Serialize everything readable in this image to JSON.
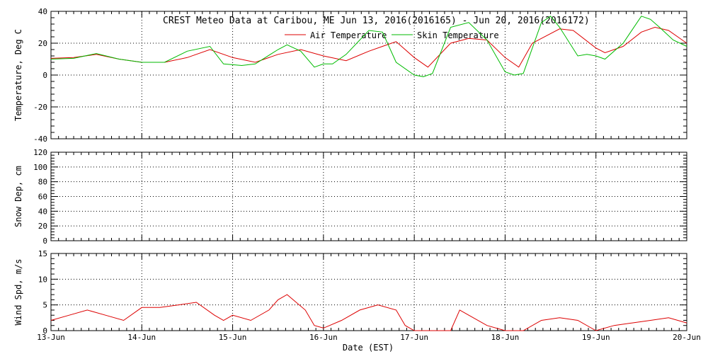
{
  "chart_data": [
    {
      "type": "line",
      "title": "CREST Meteo Data at Caribou, ME   Jun 13, 2016(2016165) - Jun 20, 2016(2016172)",
      "ylabel": "Temperature, Deg C",
      "ylim": [
        -40,
        40
      ],
      "yticks": [
        -40,
        -20,
        0,
        20,
        40
      ],
      "xlim": [
        0,
        7
      ],
      "grid": true,
      "legend_position": "top-center",
      "series": [
        {
          "name": "Air Temperature",
          "color": "#dd0000",
          "x": [
            0,
            0.25,
            0.5,
            0.75,
            1.0,
            1.25,
            1.5,
            1.75,
            2.0,
            2.25,
            2.5,
            2.75,
            3.0,
            3.25,
            3.5,
            3.65,
            3.8,
            4.0,
            4.15,
            4.4,
            4.6,
            4.8,
            5.0,
            5.15,
            5.3,
            5.6,
            5.75,
            6.0,
            6.1,
            6.3,
            6.5,
            6.65,
            6.8,
            7.0
          ],
          "values": [
            10.5,
            11,
            13,
            10,
            8,
            8,
            11,
            16,
            11,
            8,
            13,
            16,
            12,
            9,
            15,
            18,
            21,
            11,
            5,
            20,
            23,
            22,
            11,
            5,
            20,
            29,
            28,
            17,
            14,
            18,
            27,
            30,
            28,
            20
          ]
        },
        {
          "name": "Skin Temperature",
          "color": "#00bb00",
          "x": [
            0,
            0.25,
            0.5,
            0.75,
            1.0,
            1.25,
            1.5,
            1.75,
            1.9,
            2.1,
            2.25,
            2.5,
            2.6,
            2.75,
            2.9,
            3.0,
            3.1,
            3.25,
            3.5,
            3.65,
            3.8,
            4.0,
            4.1,
            4.2,
            4.4,
            4.6,
            4.8,
            5.0,
            5.1,
            5.2,
            5.4,
            5.5,
            5.6,
            5.8,
            5.9,
            6.0,
            6.1,
            6.3,
            6.5,
            6.6,
            6.7,
            6.85,
            7.0
          ],
          "values": [
            10,
            10.5,
            13.5,
            10,
            8,
            8,
            15,
            18,
            7,
            6,
            7,
            16,
            19,
            15,
            5,
            7,
            7,
            13,
            28,
            27,
            8,
            0,
            -1,
            1,
            30,
            33,
            22,
            2,
            0,
            1,
            33,
            37,
            30,
            12,
            13,
            12,
            10,
            20,
            37,
            35,
            30,
            22,
            18
          ]
        }
      ]
    },
    {
      "type": "line",
      "ylabel": "Snow Dep, cm",
      "ylim": [
        0,
        120
      ],
      "yticks": [
        0,
        20,
        40,
        60,
        80,
        100,
        120
      ],
      "xlim": [
        0,
        7
      ],
      "grid": true,
      "series": []
    },
    {
      "type": "line",
      "ylabel": "Wind Spd, m/s",
      "xlabel": "Date (EST)",
      "ylim": [
        0,
        15
      ],
      "yticks": [
        0,
        5,
        10,
        15
      ],
      "xlim": [
        0,
        7
      ],
      "xtick_labels": [
        "13-Jun",
        "14-Jun",
        "15-Jun",
        "16-Jun",
        "17-Jun",
        "18-Jun",
        "19-Jun",
        "20-Jun"
      ],
      "grid": true,
      "series": [
        {
          "color": "#dd0000",
          "x": [
            0,
            0.2,
            0.4,
            0.6,
            0.8,
            1.0,
            1.2,
            1.4,
            1.6,
            1.8,
            1.9,
            2.0,
            2.2,
            2.4,
            2.5,
            2.6,
            2.8,
            2.9,
            3.0,
            3.2,
            3.4,
            3.6,
            3.8,
            3.9,
            4.0,
            4.2,
            4.4,
            4.5,
            4.6,
            4.8,
            5.0,
            5.2,
            5.4,
            5.6,
            5.8,
            6.0,
            6.2,
            6.4,
            6.6,
            6.8,
            7.0
          ],
          "values": [
            2,
            3,
            4,
            3,
            2,
            4.5,
            4.5,
            5,
            5.5,
            3,
            2,
            3,
            2,
            4,
            6,
            7,
            4,
            1,
            0.5,
            2,
            4,
            5,
            4,
            1,
            0,
            0,
            0,
            4,
            3,
            1,
            0,
            0,
            2,
            2.5,
            2,
            0,
            1,
            1.5,
            2,
            2.5,
            1.5
          ]
        }
      ]
    }
  ]
}
